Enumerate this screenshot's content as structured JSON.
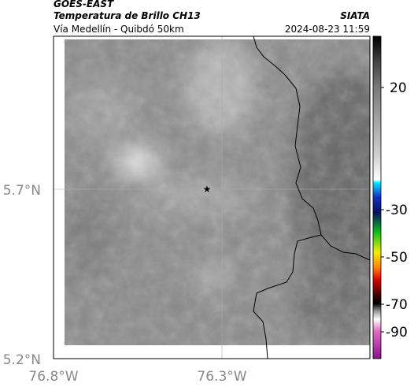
{
  "header": {
    "title": "GOES-EAST",
    "subtitle": "Temperatura de Brillo CH13",
    "source": "SIATA",
    "location": "Vía Medellín - Quibdó 50km",
    "timestamp": "2024-08-23 11:59"
  },
  "map": {
    "lat_labels": [
      "5.7°N",
      "5.2°N"
    ],
    "lon_labels": [
      "76.8°W",
      "76.3°W"
    ]
  },
  "colorbar": {
    "ticks": [
      "20",
      "-30",
      "-50",
      "-70",
      "-90"
    ]
  }
}
